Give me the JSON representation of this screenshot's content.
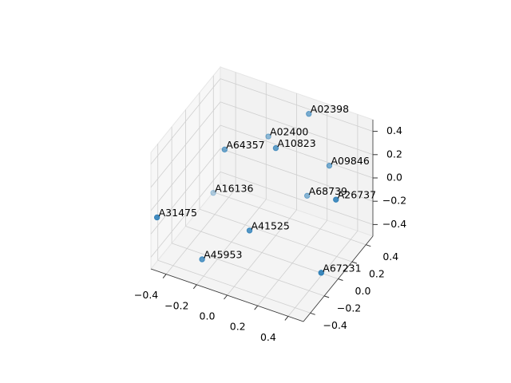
{
  "chart_data": {
    "type": "scatter3d",
    "color": "#1f77b4",
    "labels": [
      "A02398",
      "A02400",
      "A10823",
      "A64357",
      "A09846",
      "A16136",
      "A68739",
      "A26737",
      "A31475",
      "A41525",
      "A45953",
      "A67231"
    ],
    "x": [
      0.08,
      -0.14,
      0.0,
      -0.29,
      0.26,
      -0.41,
      0.16,
      0.44,
      -0.46,
      0.01,
      -0.21,
      0.48
    ],
    "y": [
      0.5,
      0.4,
      0.2,
      0.1,
      0.4,
      0.2,
      0.3,
      0.1,
      -0.5,
      -0.2,
      -0.4,
      -0.2
    ],
    "z": [
      0.36,
      0.14,
      0.25,
      0.18,
      0.07,
      -0.32,
      -0.16,
      0.08,
      -0.04,
      -0.16,
      -0.36,
      -0.31
    ],
    "xlim": [
      -0.5,
      0.5
    ],
    "ylim": [
      -0.5,
      0.5
    ],
    "zlim": [
      -0.5,
      0.5
    ],
    "xticks": [
      {
        "value": -0.4,
        "label": "−0.4"
      },
      {
        "value": -0.2,
        "label": "−0.2"
      },
      {
        "value": 0,
        "label": "0.0"
      },
      0.2,
      0.4
    ],
    "yticks": [
      {
        "value": -0.4,
        "label": "−0.4"
      },
      {
        "value": -0.2,
        "label": "−0.2"
      },
      {
        "value": 0,
        "label": "0.0"
      },
      0.2,
      0.4
    ],
    "zticks": [
      {
        "value": -0.4,
        "label": "−0.4"
      },
      {
        "value": -0.2,
        "label": "−0.2"
      },
      {
        "value": 0,
        "label": "0.0"
      },
      0.2,
      0.4
    ],
    "grid": true
  }
}
